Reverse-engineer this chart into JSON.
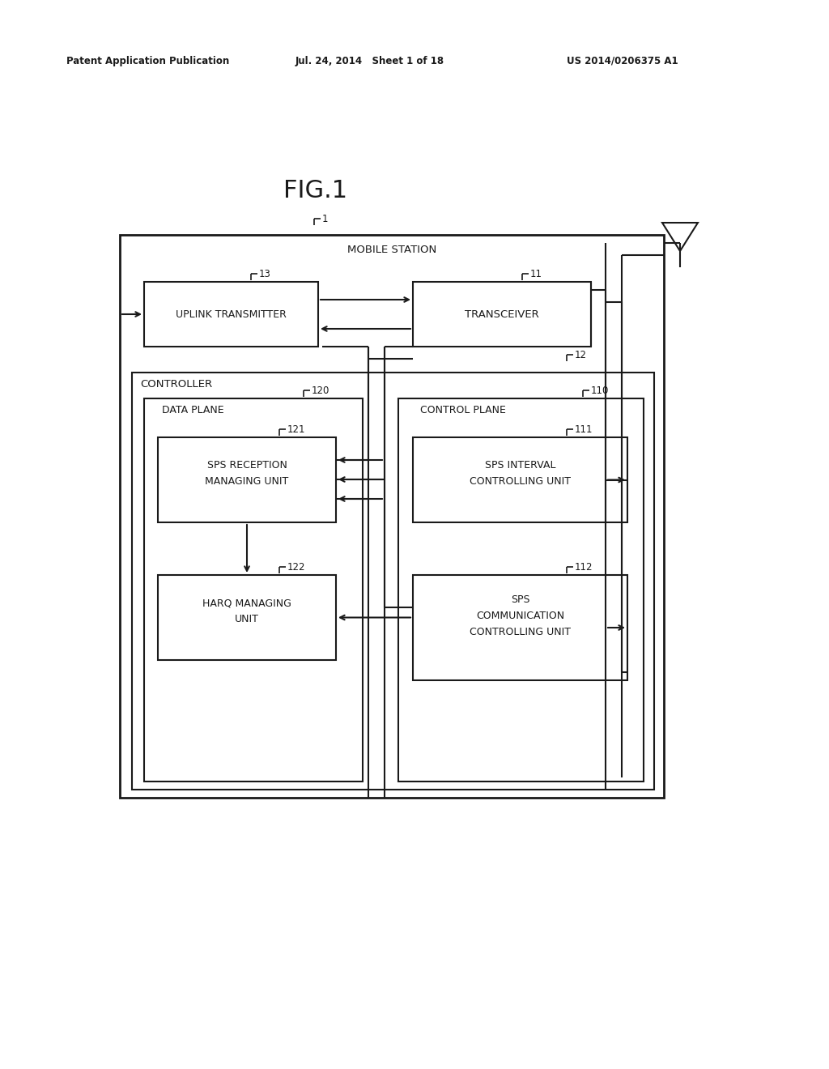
{
  "title": "FIG.1",
  "header_left": "Patent Application Publication",
  "header_mid": "Jul. 24, 2014   Sheet 1 of 18",
  "header_right": "US 2014/0206375 A1",
  "bg_color": "#ffffff",
  "line_color": "#1a1a1a",
  "font_color": "#1a1a1a",
  "diagram": {
    "mobile_station": {
      "label": "MOBILE STATION",
      "ref": "1"
    },
    "uplink_transmitter": {
      "label": "UPLINK TRANSMITTER",
      "ref": "13"
    },
    "transceiver": {
      "label": "TRANSCEIVER",
      "ref": "11"
    },
    "controller": {
      "label": "CONTROLLER",
      "ref": "12"
    },
    "data_plane": {
      "label": "DATA PLANE",
      "ref": "120"
    },
    "control_plane": {
      "label": "CONTROL PLANE",
      "ref": "110"
    },
    "sps_reception": {
      "label1": "SPS RECEPTION",
      "label2": "MANAGING UNIT",
      "ref": "121"
    },
    "sps_interval": {
      "label1": "SPS INTERVAL",
      "label2": "CONTROLLING UNIT",
      "ref": "111"
    },
    "harq": {
      "label1": "HARQ MANAGING",
      "label2": "UNIT",
      "ref": "122"
    },
    "sps_comm": {
      "label1": "SPS",
      "label2": "COMMUNICATION",
      "label3": "CONTROLLING UNIT",
      "ref": "112"
    }
  }
}
